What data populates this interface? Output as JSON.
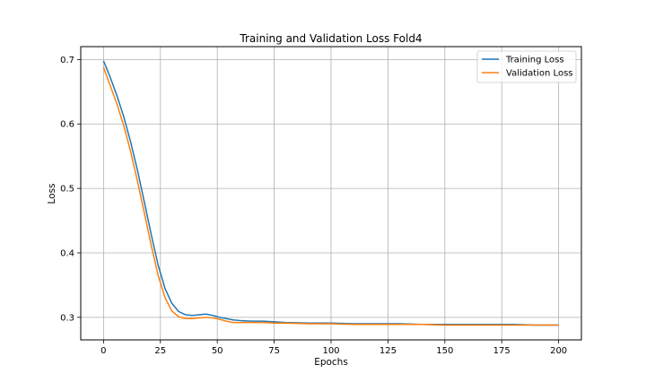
{
  "chart_data": {
    "type": "line",
    "title": "Training and Validation Loss Fold4",
    "xlabel": "Epochs",
    "ylabel": "Loss",
    "xlim": [
      -10,
      210
    ],
    "ylim": [
      0.265,
      0.72
    ],
    "xticks": [
      0,
      25,
      50,
      75,
      100,
      125,
      150,
      175,
      200
    ],
    "yticks": [
      0.3,
      0.4,
      0.5,
      0.6,
      0.7
    ],
    "grid": true,
    "legend": "top-right",
    "series": [
      {
        "name": "Training Loss",
        "color": "#1f77b4",
        "x": [
          0,
          3,
          6,
          9,
          12,
          15,
          18,
          21,
          24,
          27,
          30,
          33,
          36,
          39,
          42,
          45,
          48,
          51,
          54,
          57,
          60,
          65,
          70,
          75,
          80,
          90,
          100,
          110,
          120,
          130,
          140,
          150,
          160,
          170,
          180,
          190,
          200
        ],
        "y": [
          0.698,
          0.672,
          0.643,
          0.61,
          0.571,
          0.527,
          0.478,
          0.428,
          0.381,
          0.345,
          0.322,
          0.309,
          0.304,
          0.303,
          0.304,
          0.305,
          0.303,
          0.3,
          0.298,
          0.296,
          0.295,
          0.294,
          0.294,
          0.293,
          0.292,
          0.291,
          0.291,
          0.29,
          0.29,
          0.29,
          0.289,
          0.289,
          0.289,
          0.289,
          0.289,
          0.288,
          0.288
        ]
      },
      {
        "name": "Validation Loss",
        "color": "#ff7f0e",
        "x": [
          0,
          3,
          6,
          9,
          12,
          15,
          18,
          21,
          24,
          27,
          30,
          33,
          36,
          39,
          42,
          45,
          48,
          51,
          54,
          57,
          60,
          65,
          70,
          75,
          80,
          90,
          100,
          110,
          120,
          130,
          140,
          150,
          160,
          170,
          180,
          190,
          200
        ],
        "y": [
          0.688,
          0.659,
          0.63,
          0.596,
          0.556,
          0.51,
          0.461,
          0.411,
          0.365,
          0.331,
          0.31,
          0.301,
          0.298,
          0.298,
          0.299,
          0.3,
          0.299,
          0.297,
          0.294,
          0.292,
          0.292,
          0.292,
          0.292,
          0.291,
          0.291,
          0.29,
          0.29,
          0.289,
          0.289,
          0.289,
          0.289,
          0.288,
          0.288,
          0.288,
          0.288,
          0.288,
          0.288
        ]
      }
    ]
  }
}
